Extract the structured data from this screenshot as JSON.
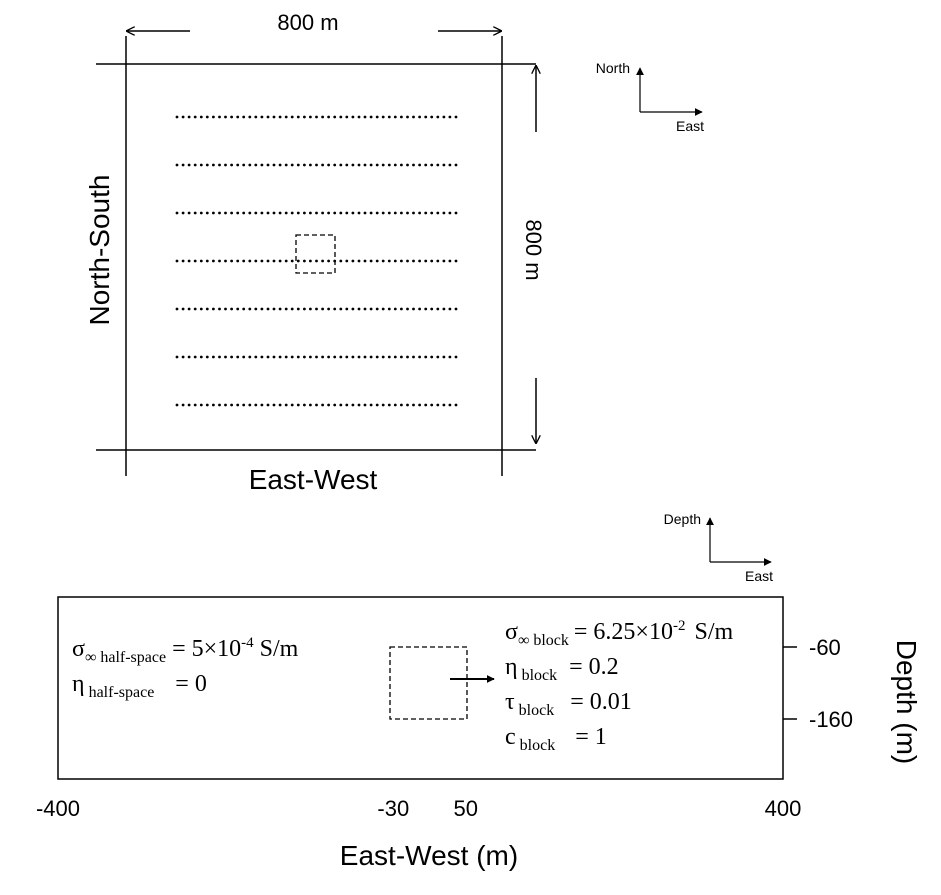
{
  "plan_view": {
    "width_label": "800 m",
    "height_label": "800 m",
    "x_axis_title": "East-West",
    "y_axis_title": "North-South",
    "station_rows": 7,
    "stations_per_row": 47
  },
  "plan_compass": {
    "north": "North",
    "east": "East"
  },
  "section_compass": {
    "depth": "Depth",
    "east": "East"
  },
  "section_view": {
    "x_axis_title": "East-West (m)",
    "y_axis_title": "Depth (m)",
    "x_ticks": [
      {
        "value": -400,
        "label": "-400"
      },
      {
        "value": -30,
        "label": "-30"
      },
      {
        "value": 50,
        "label": "50"
      },
      {
        "value": 400,
        "label": "400"
      }
    ],
    "y_ticks": [
      {
        "value": -60,
        "label": "-60"
      },
      {
        "value": -160,
        "label": "-160"
      }
    ],
    "half_space": {
      "sigma_symbol": "σ",
      "sigma_sub": "∞ half-space",
      "sigma_value": "= 5×10",
      "sigma_exp": "-4",
      "sigma_unit": "S/m",
      "eta_symbol": "η",
      "eta_sub": "half-space",
      "eta_value": "= 0"
    },
    "block": {
      "sigma_symbol": "σ",
      "sigma_sub": "∞ block",
      "sigma_value": "= 6.25×10",
      "sigma_exp": "-2",
      "sigma_unit": "S/m",
      "eta_symbol": "η",
      "eta_sub": "block",
      "eta_value": "= 0.2",
      "tau_symbol": "τ",
      "tau_sub": "block",
      "tau_value": "= 0.01",
      "c_symbol": "c",
      "c_sub": "block",
      "c_value": "= 1"
    }
  }
}
